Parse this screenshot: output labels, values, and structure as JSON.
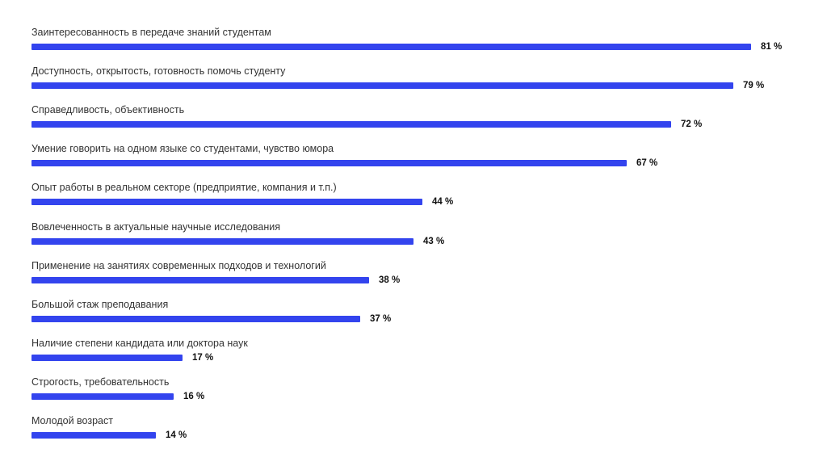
{
  "chart_data": {
    "type": "bar",
    "orientation": "horizontal",
    "bar_color": "#3344ee",
    "categories": [
      "Заинтересованность в передаче знаний студентам",
      "Доступность, открытость, готовность помочь студенту",
      "Справедливость, объективность",
      "Умение говорить на одном языке со студентами, чувство юмора",
      "Опыт работы в реальном секторе (предприятие, компания и т.п.)",
      "Вовлеченность в актуальные научные исследования",
      "Применение на занятиях современных подходов и технологий",
      "Большой стаж преподавания",
      "Наличие степени кандидата или доктора наук",
      "Строгость, требовательность",
      "Молодой возраст"
    ],
    "values": [
      81,
      79,
      72,
      67,
      44,
      43,
      38,
      37,
      17,
      16,
      14
    ],
    "value_labels": [
      "81 %",
      "79 %",
      "72 %",
      "67 %",
      "44 %",
      "43 %",
      "38  %",
      "37  %",
      "17  %",
      "16  %",
      "14 %"
    ],
    "grid": false,
    "legend": "none"
  }
}
